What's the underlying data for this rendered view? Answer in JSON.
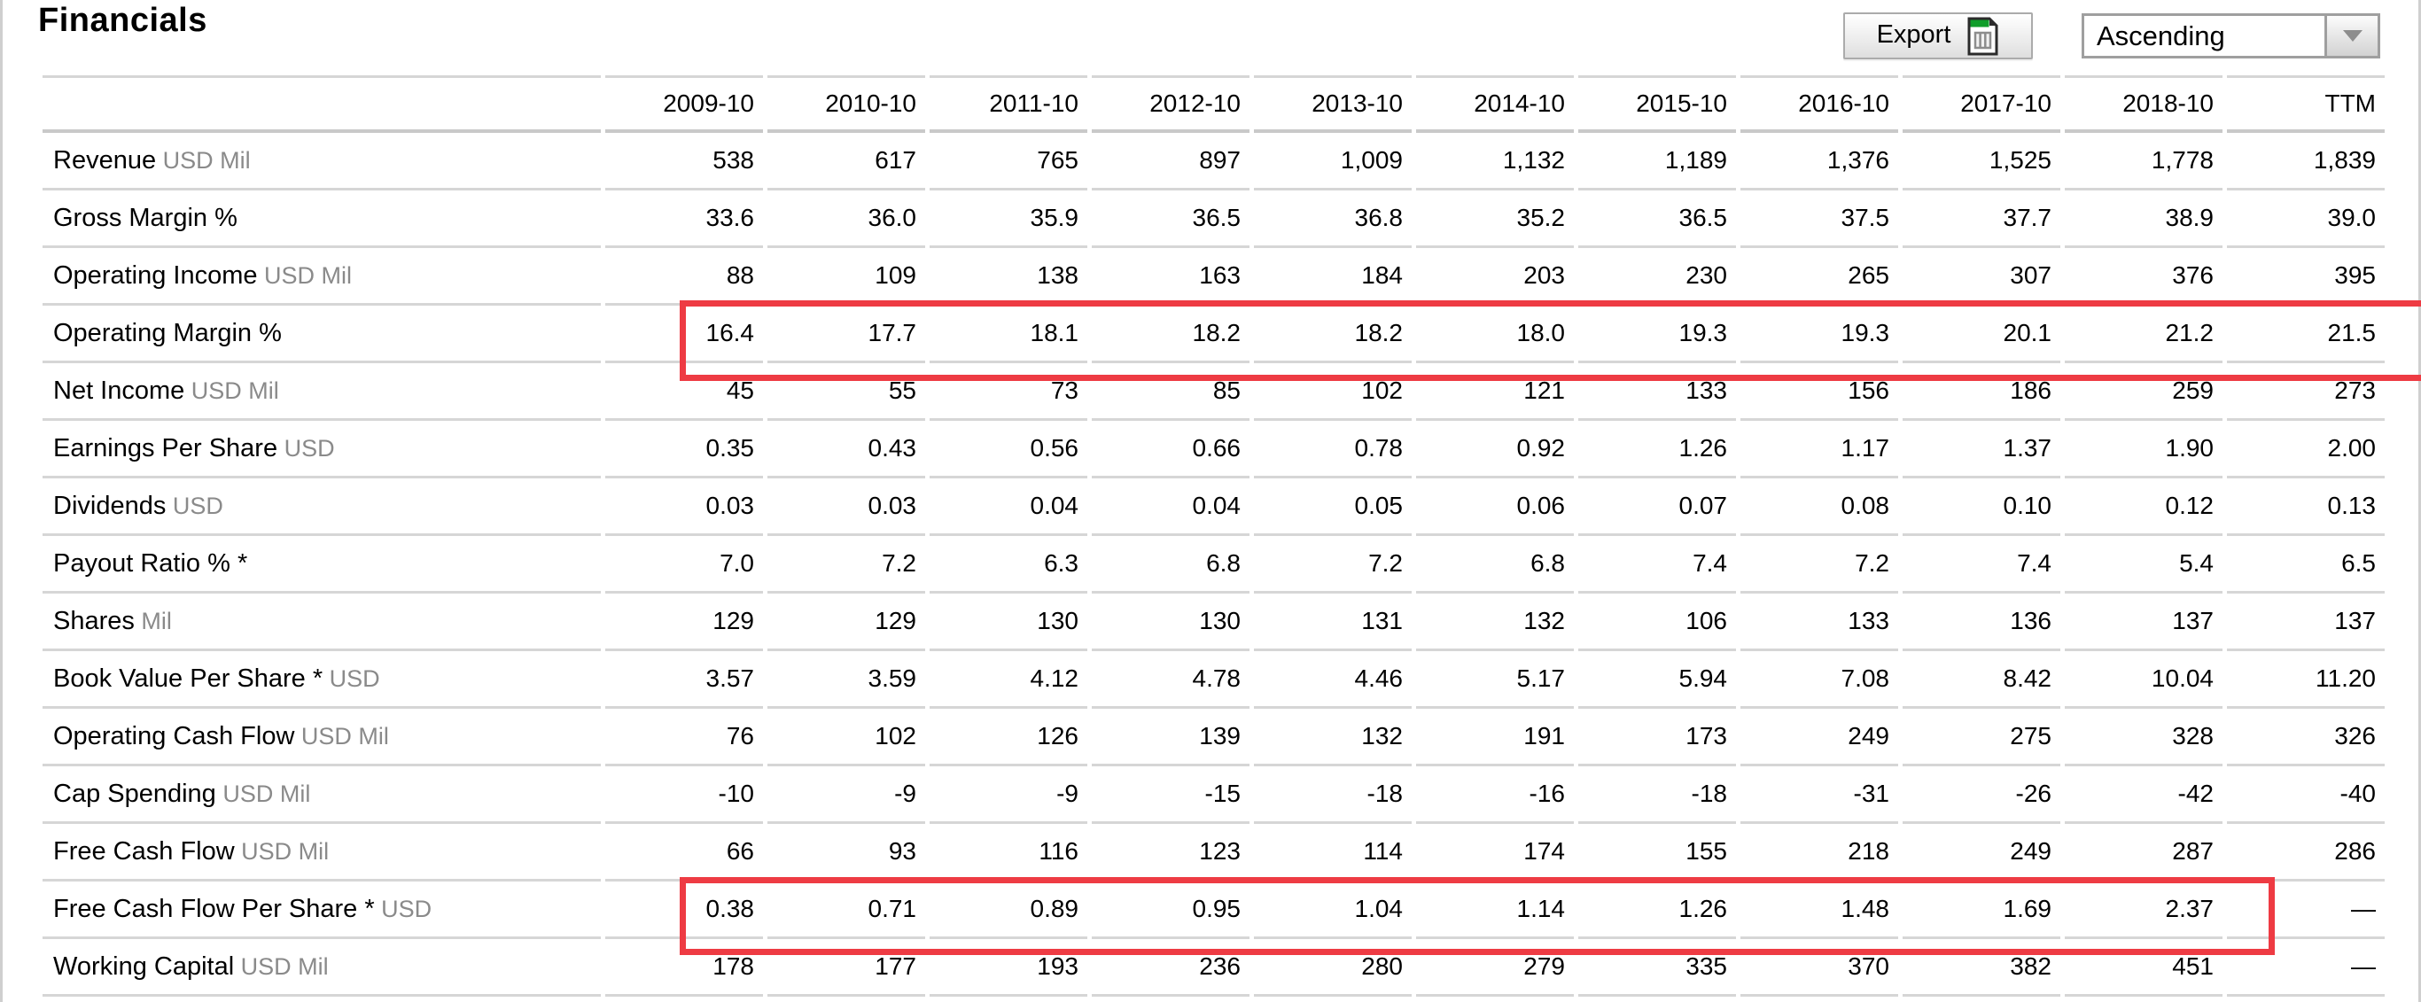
{
  "page": {
    "title": "Financials"
  },
  "toolbar": {
    "export_label": "Export",
    "export_icon": "spreadsheet-export-icon",
    "sort_value": "Ascending",
    "sort_icon": "chevron-down-icon"
  },
  "colors": {
    "highlight_red": "#ee3b43",
    "separator_gray": "#d6d6d6",
    "unit_text_gray": "#8a8a8a",
    "export_icon_green": "#0f9d2a"
  },
  "table": {
    "columns": [
      "2009-10",
      "2010-10",
      "2011-10",
      "2012-10",
      "2013-10",
      "2014-10",
      "2015-10",
      "2016-10",
      "2017-10",
      "2018-10",
      "TTM"
    ],
    "rows": [
      {
        "label": "Revenue",
        "unit": "USD Mil",
        "values": [
          "538",
          "617",
          "765",
          "897",
          "1,009",
          "1,132",
          "1,189",
          "1,376",
          "1,525",
          "1,778",
          "1,839"
        ]
      },
      {
        "label": "Gross Margin %",
        "unit": "",
        "values": [
          "33.6",
          "36.0",
          "35.9",
          "36.5",
          "36.8",
          "35.2",
          "36.5",
          "37.5",
          "37.7",
          "38.9",
          "39.0"
        ]
      },
      {
        "label": "Operating Income",
        "unit": "USD Mil",
        "values": [
          "88",
          "109",
          "138",
          "163",
          "184",
          "203",
          "230",
          "265",
          "307",
          "376",
          "395"
        ]
      },
      {
        "label": "Operating Margin %",
        "unit": "",
        "values": [
          "16.4",
          "17.7",
          "18.1",
          "18.2",
          "18.2",
          "18.0",
          "19.3",
          "19.3",
          "20.1",
          "21.2",
          "21.5"
        ]
      },
      {
        "label": "Net Income",
        "unit": "USD Mil",
        "values": [
          "45",
          "55",
          "73",
          "85",
          "102",
          "121",
          "133",
          "156",
          "186",
          "259",
          "273"
        ]
      },
      {
        "label": "Earnings Per Share",
        "unit": "USD",
        "values": [
          "0.35",
          "0.43",
          "0.56",
          "0.66",
          "0.78",
          "0.92",
          "1.26",
          "1.17",
          "1.37",
          "1.90",
          "2.00"
        ]
      },
      {
        "label": "Dividends",
        "unit": "USD",
        "values": [
          "0.03",
          "0.03",
          "0.04",
          "0.04",
          "0.05",
          "0.06",
          "0.07",
          "0.08",
          "0.10",
          "0.12",
          "0.13"
        ]
      },
      {
        "label": "Payout Ratio % *",
        "unit": "",
        "values": [
          "7.0",
          "7.2",
          "6.3",
          "6.8",
          "7.2",
          "6.8",
          "7.4",
          "7.2",
          "7.4",
          "5.4",
          "6.5"
        ]
      },
      {
        "label": "Shares",
        "unit": "Mil",
        "values": [
          "129",
          "129",
          "130",
          "130",
          "131",
          "132",
          "106",
          "133",
          "136",
          "137",
          "137"
        ]
      },
      {
        "label": "Book Value Per Share *",
        "unit": "USD",
        "values": [
          "3.57",
          "3.59",
          "4.12",
          "4.78",
          "4.46",
          "5.17",
          "5.94",
          "7.08",
          "8.42",
          "10.04",
          "11.20"
        ]
      },
      {
        "label": "Operating Cash Flow",
        "unit": "USD Mil",
        "values": [
          "76",
          "102",
          "126",
          "139",
          "132",
          "191",
          "173",
          "249",
          "275",
          "328",
          "326"
        ]
      },
      {
        "label": "Cap Spending",
        "unit": "USD Mil",
        "values": [
          "-10",
          "-9",
          "-9",
          "-15",
          "-18",
          "-16",
          "-18",
          "-31",
          "-26",
          "-42",
          "-40"
        ]
      },
      {
        "label": "Free Cash Flow",
        "unit": "USD Mil",
        "values": [
          "66",
          "93",
          "116",
          "123",
          "114",
          "174",
          "155",
          "218",
          "249",
          "287",
          "286"
        ]
      },
      {
        "label": "Free Cash Flow Per Share *",
        "unit": "USD",
        "values": [
          "0.38",
          "0.71",
          "0.89",
          "0.95",
          "1.04",
          "1.14",
          "1.26",
          "1.48",
          "1.69",
          "2.37",
          "—"
        ]
      },
      {
        "label": "Working Capital",
        "unit": "USD Mil",
        "values": [
          "178",
          "177",
          "193",
          "236",
          "280",
          "279",
          "335",
          "370",
          "382",
          "451",
          "—"
        ]
      }
    ],
    "highlights": [
      {
        "row": "Operating Margin %",
        "row_index": 3,
        "span": "2009-10 through TTM"
      },
      {
        "row": "Free Cash Flow Per Share *",
        "row_index": 13,
        "span": "2009-10 through 2018-10"
      }
    ]
  }
}
